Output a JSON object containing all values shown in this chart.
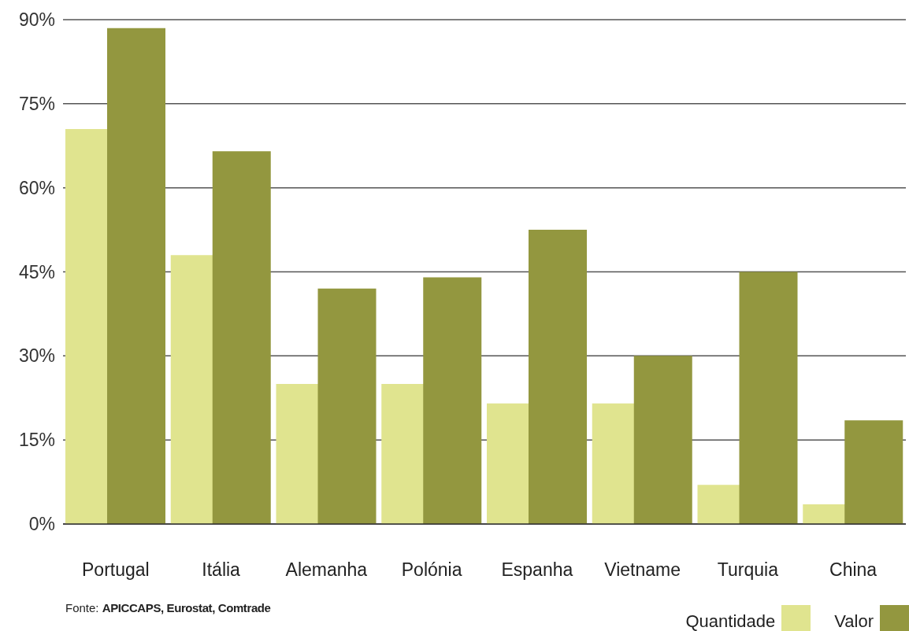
{
  "chart_data": {
    "type": "bar",
    "categories": [
      "Portugal",
      "Itália",
      "Alemanha",
      "Polónia",
      "Espanha",
      "Vietname",
      "Turquia",
      "China"
    ],
    "series": [
      {
        "name": "Quantidade",
        "color": "#e0e48f",
        "values": [
          70.5,
          48,
          25,
          25,
          21.5,
          21.5,
          7,
          3.5
        ]
      },
      {
        "name": "Valor",
        "color": "#93973f",
        "values": [
          88.5,
          66.5,
          42,
          44,
          52.5,
          30,
          45,
          18.5
        ]
      }
    ],
    "ylim": [
      0,
      90
    ],
    "yticks": [
      {
        "value": 0,
        "label": "0%"
      },
      {
        "value": 15,
        "label": "15%"
      },
      {
        "value": 30,
        "label": "30%"
      },
      {
        "value": 45,
        "label": "45%"
      },
      {
        "value": 60,
        "label": "60%"
      },
      {
        "value": 75,
        "label": "75%"
      },
      {
        "value": 90,
        "label": "90%"
      }
    ],
    "grid": "y",
    "legend": "bottom right",
    "annotations": [
      "Fonte: APICCAPS, Eurostat, Comtrade"
    ]
  }
}
